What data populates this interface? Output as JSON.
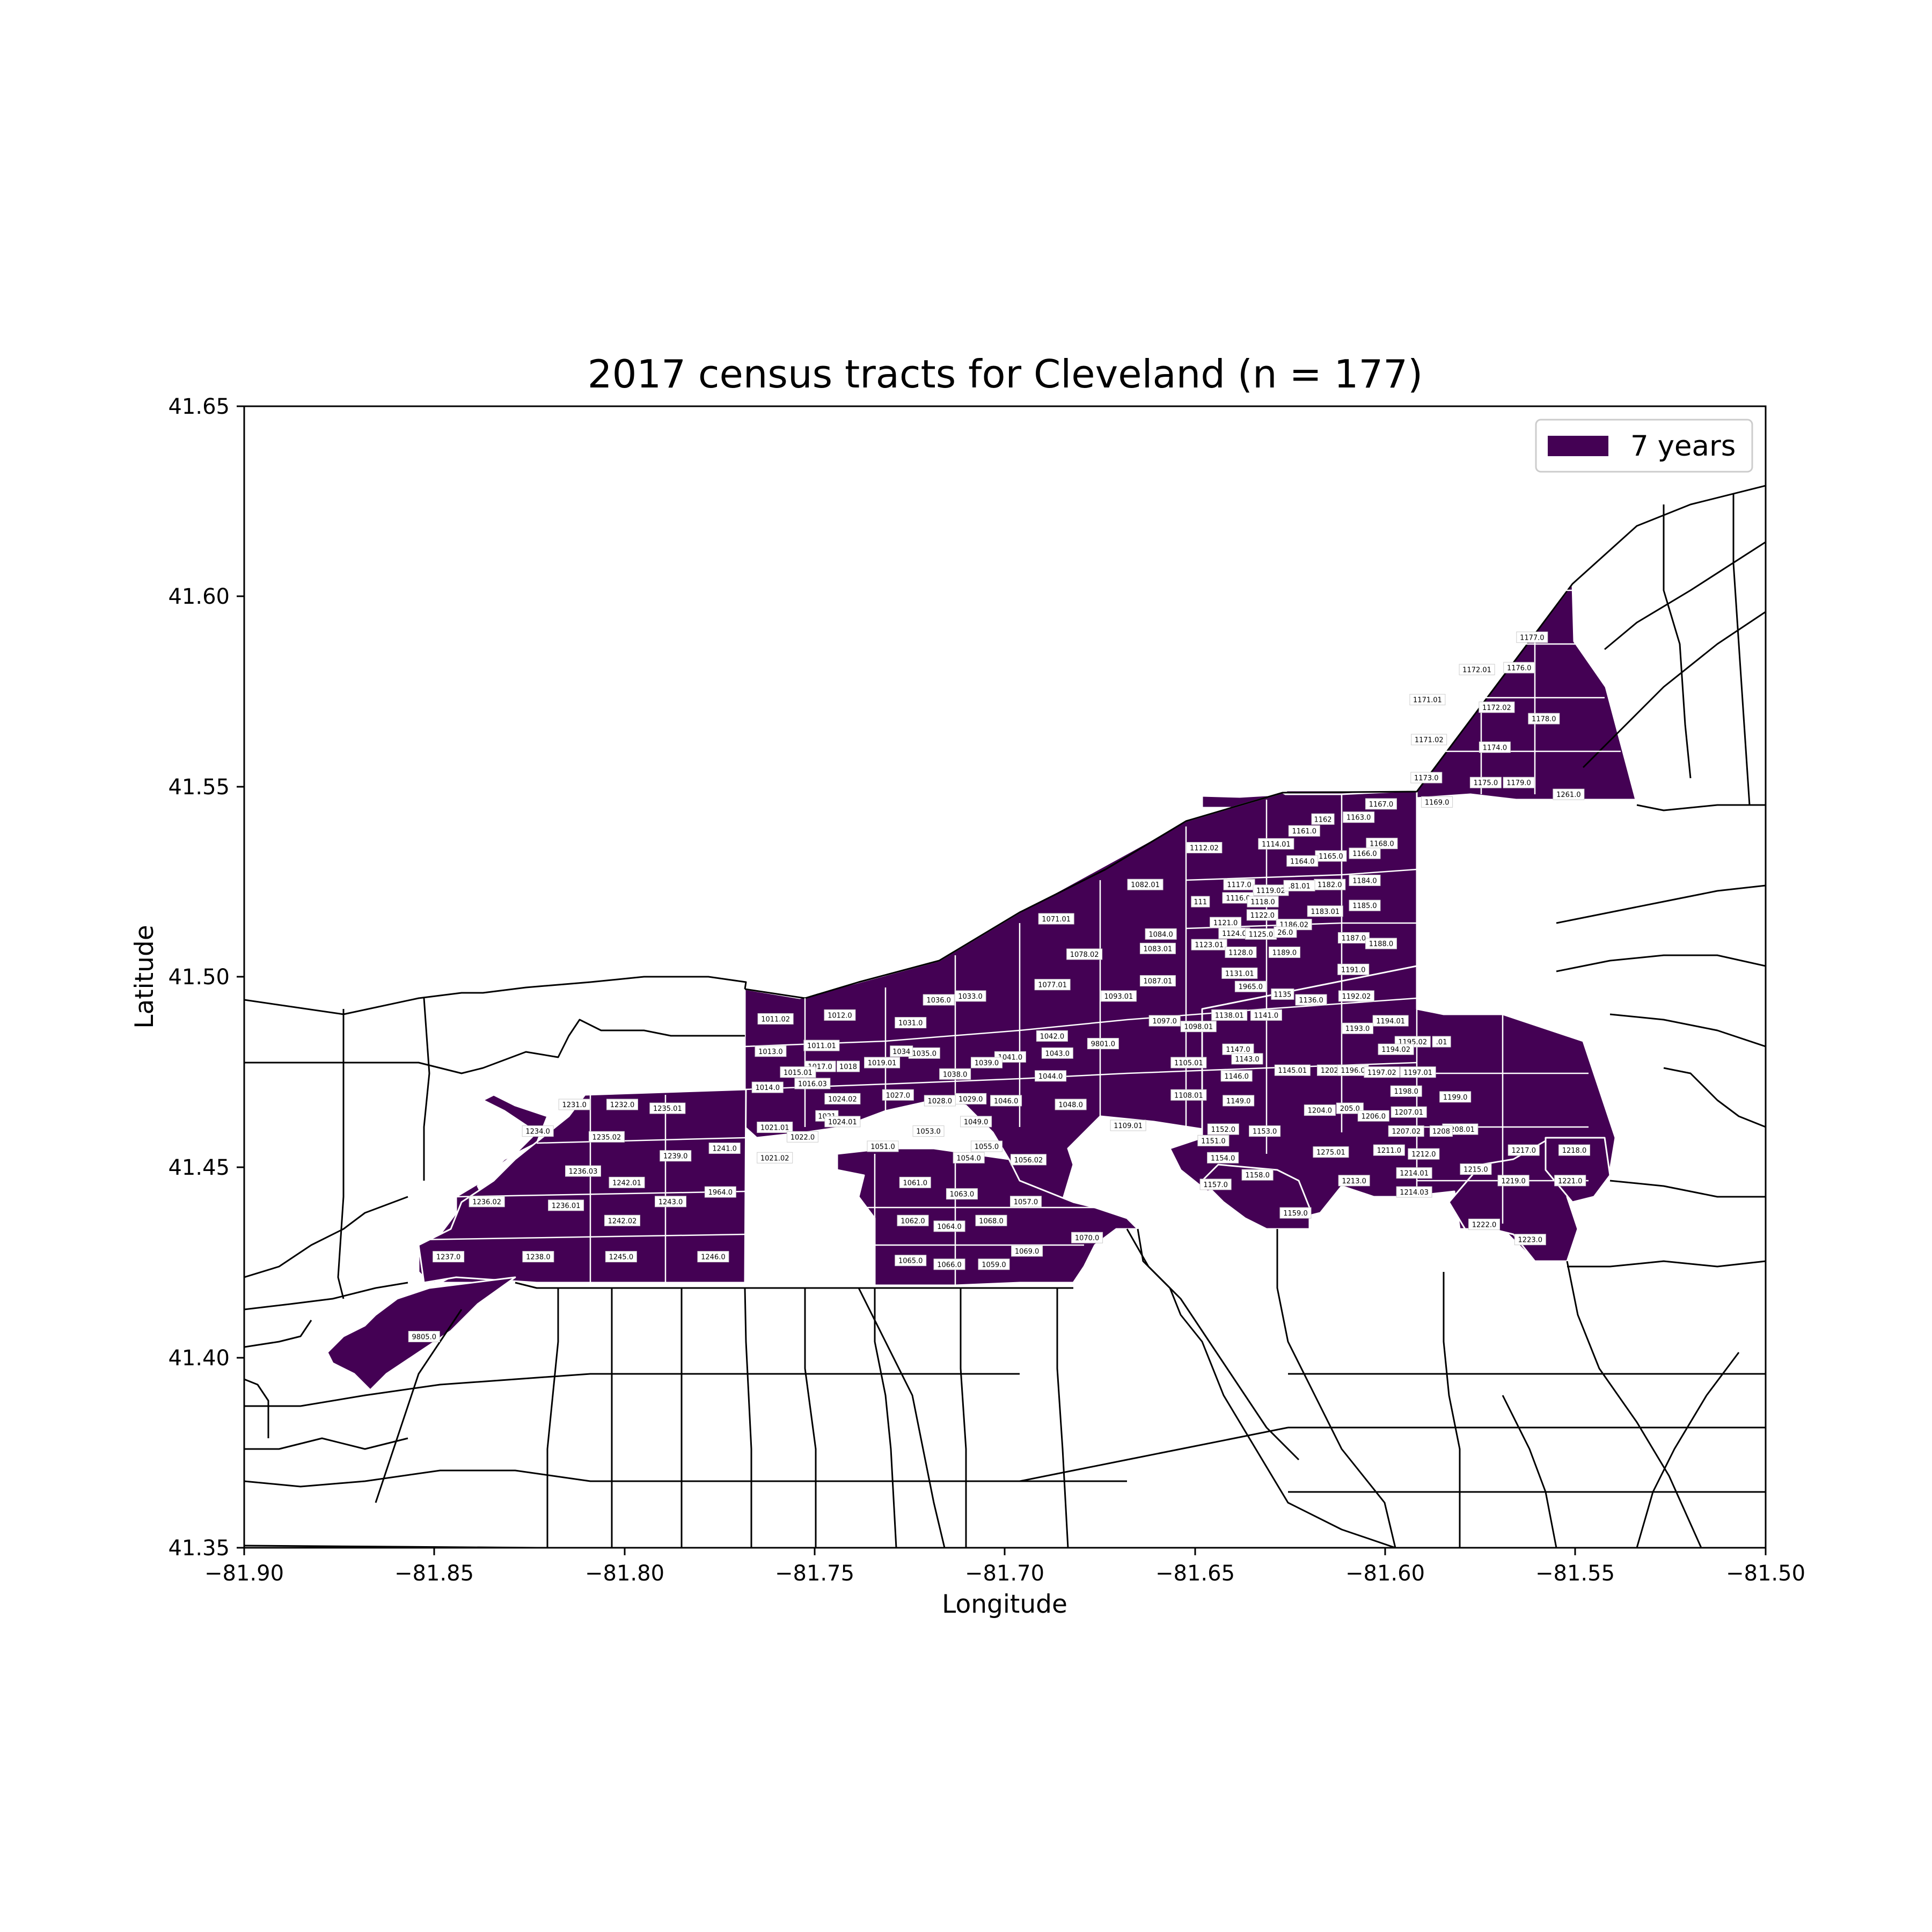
{
  "chart_data": {
    "type": "map",
    "title": "2017 census tracts for Cleveland (n = 177)",
    "xlabel": "Longitude",
    "ylabel": "Latitude",
    "xlim": [
      -81.9,
      -81.5
    ],
    "ylim": [
      41.35,
      41.65
    ],
    "xticks": [
      "−81.90",
      "−81.85",
      "−81.80",
      "−81.75",
      "−81.70",
      "−81.65",
      "−81.60",
      "−81.55",
      "−81.50"
    ],
    "yticks": [
      "41.35",
      "41.40",
      "41.45",
      "41.50",
      "41.55",
      "41.60",
      "41.65"
    ],
    "legend": {
      "placement": "top-right",
      "entries": [
        {
          "label": "7 years",
          "color": "#440154"
        }
      ]
    },
    "colors": {
      "highlight_fill": "#440154",
      "highlight_edge": "#ffffff",
      "boundary": "#000000"
    },
    "tract_labels": [
      {
        "t": "1177.0",
        "lon": -81.5614,
        "lat": 41.5893
      },
      {
        "t": "1172.01",
        "lon": -81.5759,
        "lat": 41.5808
      },
      {
        "t": "1176.0",
        "lon": -81.5648,
        "lat": 41.5813
      },
      {
        "t": "1171.01",
        "lon": -81.5889,
        "lat": 41.5729
      },
      {
        "t": "1172.02",
        "lon": -81.5707,
        "lat": 41.5709
      },
      {
        "t": "1178.0",
        "lon": -81.5583,
        "lat": 41.5679
      },
      {
        "t": "1171.02",
        "lon": -81.5885,
        "lat": 41.5624
      },
      {
        "t": "1174.0",
        "lon": -81.5712,
        "lat": 41.5604
      },
      {
        "t": "1173.0",
        "lon": -81.5892,
        "lat": 41.5524
      },
      {
        "t": "1175.0",
        "lon": -81.5736,
        "lat": 41.5511
      },
      {
        "t": "1179.0",
        "lon": -81.5649,
        "lat": 41.5511
      },
      {
        "t": "1261.0",
        "lon": -81.5518,
        "lat": 41.548
      },
      {
        "t": "1169.0",
        "lon": -81.5864,
        "lat": 41.546
      },
      {
        "t": "1167.0",
        "lon": -81.6011,
        "lat": 41.5455
      },
      {
        "t": "1163.0",
        "lon": -81.607,
        "lat": 41.542
      },
      {
        "t": "1162",
        "lon": -81.6164,
        "lat": 41.5415
      },
      {
        "t": "1161.0",
        "lon": -81.6213,
        "lat": 41.5384
      },
      {
        "t": "1168.0",
        "lon": -81.6009,
        "lat": 41.5351
      },
      {
        "t": "1114.01",
        "lon": -81.6287,
        "lat": 41.535
      },
      {
        "t": "1112.02",
        "lon": -81.6476,
        "lat": 41.534
      },
      {
        "t": "1166.0",
        "lon": -81.6054,
        "lat": 41.5325
      },
      {
        "t": "1165.0",
        "lon": -81.6143,
        "lat": 41.5318
      },
      {
        "t": "1164.0",
        "lon": -81.6218,
        "lat": 41.5305
      },
      {
        "t": "1184.0",
        "lon": -81.6054,
        "lat": 41.5254
      },
      {
        "t": "1117.0",
        "lon": -81.6384,
        "lat": 41.5243
      },
      {
        "t": "1182.0",
        "lon": -81.6146,
        "lat": 41.5243
      },
      {
        "t": "1082.01",
        "lon": -81.6631,
        "lat": 41.5243
      },
      {
        "t": "1119.02",
        "lon": -81.6301,
        "lat": 41.5228
      },
      {
        "t": ".81.01",
        "lon": -81.6226,
        "lat": 41.524
      },
      {
        "t": "1116.0",
        "lon": -81.6387,
        "lat": 41.5208
      },
      {
        "t": "1118.0",
        "lon": -81.6322,
        "lat": 41.5198
      },
      {
        "t": "111",
        "lon": -81.6486,
        "lat": 41.5198
      },
      {
        "t": "1185.0",
        "lon": -81.6054,
        "lat": 41.5188
      },
      {
        "t": "1183.01",
        "lon": -81.6158,
        "lat": 41.5173
      },
      {
        "t": "1122.0",
        "lon": -81.6323,
        "lat": 41.5163
      },
      {
        "t": "1121.0",
        "lon": -81.642,
        "lat": 41.5143
      },
      {
        "t": "1071.01",
        "lon": -81.6865,
        "lat": 41.5153
      },
      {
        "t": "1186.02",
        "lon": -81.624,
        "lat": 41.5138
      },
      {
        "t": "1124.0",
        "lon": -81.6397,
        "lat": 41.5115
      },
      {
        "t": "1125.0",
        "lon": -81.6327,
        "lat": 41.5113
      },
      {
        "t": "26.0",
        "lon": -81.6263,
        "lat": 41.5118
      },
      {
        "t": "1084.0",
        "lon": -81.659,
        "lat": 41.5113
      },
      {
        "t": "1187.0",
        "lon": -81.6083,
        "lat": 41.5103
      },
      {
        "t": "1123.01",
        "lon": -81.6463,
        "lat": 41.5085
      },
      {
        "t": "1083.01",
        "lon": -81.6598,
        "lat": 41.5075
      },
      {
        "t": "1188.0",
        "lon": -81.6011,
        "lat": 41.5088
      },
      {
        "t": "1128.0",
        "lon": -81.638,
        "lat": 41.5065
      },
      {
        "t": "1189.0",
        "lon": -81.6265,
        "lat": 41.5065
      },
      {
        "t": "1078.02",
        "lon": -81.6791,
        "lat": 41.506
      },
      {
        "t": "1191.0",
        "lon": -81.6084,
        "lat": 41.502
      },
      {
        "t": "1131.01",
        "lon": -81.6383,
        "lat": 41.501
      },
      {
        "t": "1087.01",
        "lon": -81.6598,
        "lat": 41.499
      },
      {
        "t": "1077.01",
        "lon": -81.6875,
        "lat": 41.498
      },
      {
        "t": "1965.0",
        "lon": -81.6354,
        "lat": 41.4975
      },
      {
        "t": "1135",
        "lon": -81.627,
        "lat": 41.4955
      },
      {
        "t": "1192.02",
        "lon": -81.6076,
        "lat": 41.495
      },
      {
        "t": "1136.0",
        "lon": -81.6195,
        "lat": 41.494
      },
      {
        "t": "1093.01",
        "lon": -81.6701,
        "lat": 41.495
      },
      {
        "t": "1036.0",
        "lon": -81.7174,
        "lat": 41.494
      },
      {
        "t": "1033.0",
        "lon": -81.7091,
        "lat": 41.495
      },
      {
        "t": "1011.02",
        "lon": -81.7603,
        "lat": 41.489
      },
      {
        "t": "1012.0",
        "lon": -81.7434,
        "lat": 41.49
      },
      {
        "t": "1138.01",
        "lon": -81.641,
        "lat": 41.49
      },
      {
        "t": "1141.0",
        "lon": -81.6313,
        "lat": 41.49
      },
      {
        "t": "1097.0",
        "lon": -81.658,
        "lat": 41.4885
      },
      {
        "t": "1098.01",
        "lon": -81.6491,
        "lat": 41.487
      },
      {
        "t": "1031.0",
        "lon": -81.7248,
        "lat": 41.488
      },
      {
        "t": "1194.01",
        "lon": -81.5986,
        "lat": 41.4885
      },
      {
        "t": "1193.0",
        "lon": -81.6073,
        "lat": 41.4865
      },
      {
        "t": "1042.0",
        "lon": -81.6876,
        "lat": 41.4845
      },
      {
        "t": "1195.02",
        "lon": -81.5928,
        "lat": 41.483
      },
      {
        "t": ".01",
        "lon": -81.5852,
        "lat": 41.483
      },
      {
        "t": "9801.0",
        "lon": -81.6742,
        "lat": 41.4825
      },
      {
        "t": "1194.02",
        "lon": -81.5972,
        "lat": 41.481
      },
      {
        "t": "1011.01",
        "lon": -81.7482,
        "lat": 41.482
      },
      {
        "t": "1013.0",
        "lon": -81.7616,
        "lat": 41.4805
      },
      {
        "t": "1147.0",
        "lon": -81.6387,
        "lat": 41.481
      },
      {
        "t": "1043.0",
        "lon": -81.6862,
        "lat": 41.48
      },
      {
        "t": "1035.0",
        "lon": -81.7212,
        "lat": 41.48
      },
      {
        "t": "1034",
        "lon": -81.7272,
        "lat": 41.4805
      },
      {
        "t": "1041.0",
        "lon": -81.6986,
        "lat": 41.479
      },
      {
        "t": "1143.0",
        "lon": -81.6363,
        "lat": 41.4785
      },
      {
        "t": "1105.01",
        "lon": -81.6517,
        "lat": 41.4775
      },
      {
        "t": "1039.0",
        "lon": -81.7048,
        "lat": 41.4775
      },
      {
        "t": "1019.01",
        "lon": -81.7323,
        "lat": 41.4775
      },
      {
        "t": "1017.0",
        "lon": -81.7486,
        "lat": 41.4765
      },
      {
        "t": "1018",
        "lon": -81.7412,
        "lat": 41.4765
      },
      {
        "t": "1145.01",
        "lon": -81.6244,
        "lat": 41.4755
      },
      {
        "t": "1202.0",
        "lon": -81.6138,
        "lat": 41.4755
      },
      {
        "t": "1196.0",
        "lon": -81.6085,
        "lat": 41.4755
      },
      {
        "t": "1197.02",
        "lon": -81.6009,
        "lat": 41.475
      },
      {
        "t": "1197.01",
        "lon": -81.5914,
        "lat": 41.475
      },
      {
        "t": "1015.01",
        "lon": -81.7544,
        "lat": 41.475
      },
      {
        "t": "1038.0",
        "lon": -81.7131,
        "lat": 41.4745
      },
      {
        "t": "1044.0",
        "lon": -81.688,
        "lat": 41.474
      },
      {
        "t": "1146.0",
        "lon": -81.6391,
        "lat": 41.474
      },
      {
        "t": "1016.03",
        "lon": -81.7506,
        "lat": 41.472
      },
      {
        "t": "1014.0",
        "lon": -81.7624,
        "lat": 41.471
      },
      {
        "t": "1198.0",
        "lon": -81.5945,
        "lat": 41.47
      },
      {
        "t": "1108.01",
        "lon": -81.6517,
        "lat": 41.469
      },
      {
        "t": "1199.0",
        "lon": -81.5816,
        "lat": 41.4685
      },
      {
        "t": "1027.0",
        "lon": -81.7281,
        "lat": 41.469
      },
      {
        "t": "1024.02",
        "lon": -81.7427,
        "lat": 41.468
      },
      {
        "t": "1029.0",
        "lon": -81.709,
        "lat": 41.468
      },
      {
        "t": "1046.0",
        "lon": -81.6997,
        "lat": 41.4675
      },
      {
        "t": "1028.0",
        "lon": -81.7171,
        "lat": 41.4675
      },
      {
        "t": "1149.0",
        "lon": -81.6386,
        "lat": 41.4675
      },
      {
        "t": "1048.0",
        "lon": -81.6827,
        "lat": 41.4665
      },
      {
        "t": "1231.0",
        "lon": -81.8132,
        "lat": 41.4665
      },
      {
        "t": "1232.0",
        "lon": -81.8006,
        "lat": 41.4665
      },
      {
        "t": "1235.01",
        "lon": -81.7887,
        "lat": 41.4655
      },
      {
        "t": "1204.0",
        "lon": -81.6172,
        "lat": 41.465
      },
      {
        "t": "205.0",
        "lon": -81.6093,
        "lat": 41.4655
      },
      {
        "t": "1207.01",
        "lon": -81.5938,
        "lat": 41.4645
      },
      {
        "t": "1206.0",
        "lon": -81.6031,
        "lat": 41.4635
      },
      {
        "t": "1021",
        "lon": -81.7468,
        "lat": 41.4635
      },
      {
        "t": "1049.0",
        "lon": -81.7076,
        "lat": 41.462
      },
      {
        "t": "1024.01",
        "lon": -81.7427,
        "lat": 41.462
      },
      {
        "t": "1109.01",
        "lon": -81.6676,
        "lat": 41.461
      },
      {
        "t": "1021.01",
        "lon": -81.7605,
        "lat": 41.4605
      },
      {
        "t": "1208.01",
        "lon": -81.5803,
        "lat": 41.46
      },
      {
        "t": "1207.02",
        "lon": -81.5945,
        "lat": 41.4595
      },
      {
        "t": "1208",
        "lon": -81.5853,
        "lat": 41.4595
      },
      {
        "t": "1152.0",
        "lon": -81.6426,
        "lat": 41.46
      },
      {
        "t": "1153.0",
        "lon": -81.6317,
        "lat": 41.4595
      },
      {
        "t": "1234.0",
        "lon": -81.8228,
        "lat": 41.4595
      },
      {
        "t": "1053.0",
        "lon": -81.7201,
        "lat": 41.4595
      },
      {
        "t": "1022.0",
        "lon": -81.7532,
        "lat": 41.458
      },
      {
        "t": "1235.02",
        "lon": -81.8047,
        "lat": 41.458
      },
      {
        "t": "1151.0",
        "lon": -81.6452,
        "lat": 41.457
      },
      {
        "t": "1055.0",
        "lon": -81.7048,
        "lat": 41.4555
      },
      {
        "t": "1051.0",
        "lon": -81.7321,
        "lat": 41.4555
      },
      {
        "t": "1241.0",
        "lon": -81.7737,
        "lat": 41.455
      },
      {
        "t": "1211.0",
        "lon": -81.599,
        "lat": 41.4545
      },
      {
        "t": "1217.0",
        "lon": -81.5636,
        "lat": 41.4545
      },
      {
        "t": "1218.0",
        "lon": -81.5503,
        "lat": 41.4545
      },
      {
        "t": "1275.01",
        "lon": -81.6143,
        "lat": 41.454
      },
      {
        "t": "1212.0",
        "lon": -81.5899,
        "lat": 41.4535
      },
      {
        "t": "1239.0",
        "lon": -81.7866,
        "lat": 41.453
      },
      {
        "t": "1154.0",
        "lon": -81.6427,
        "lat": 41.4525
      },
      {
        "t": "1021.02",
        "lon": -81.7605,
        "lat": 41.4525
      },
      {
        "t": "1054.0",
        "lon": -81.7095,
        "lat": 41.4525
      },
      {
        "t": "1056.02",
        "lon": -81.6938,
        "lat": 41.452
      },
      {
        "t": "1215.0",
        "lon": -81.5762,
        "lat": 41.4495
      },
      {
        "t": "1236.03",
        "lon": -81.8109,
        "lat": 41.449
      },
      {
        "t": "1214.01",
        "lon": -81.5924,
        "lat": 41.4485
      },
      {
        "t": "1158.0",
        "lon": -81.6336,
        "lat": 41.448
      },
      {
        "t": "1213.0",
        "lon": -81.6082,
        "lat": 41.4465
      },
      {
        "t": "1219.0",
        "lon": -81.5663,
        "lat": 41.4465
      },
      {
        "t": "1221.0",
        "lon": -81.5514,
        "lat": 41.4465
      },
      {
        "t": "1242.01",
        "lon": -81.7994,
        "lat": 41.446
      },
      {
        "t": "1061.0",
        "lon": -81.7236,
        "lat": 41.446
      },
      {
        "t": "1157.0",
        "lon": -81.6446,
        "lat": 41.4455
      },
      {
        "t": "1964.0",
        "lon": -81.7748,
        "lat": 41.4435
      },
      {
        "t": "1214.03",
        "lon": -81.5924,
        "lat": 41.4435
      },
      {
        "t": "1063.0",
        "lon": -81.7113,
        "lat": 41.443
      },
      {
        "t": "1236.02",
        "lon": -81.8362,
        "lat": 41.441
      },
      {
        "t": "1236.01",
        "lon": -81.8154,
        "lat": 41.44
      },
      {
        "t": "1243.0",
        "lon": -81.7879,
        "lat": 41.441
      },
      {
        "t": "1057.0",
        "lon": -81.6945,
        "lat": 41.441
      },
      {
        "t": "1159.0",
        "lon": -81.6236,
        "lat": 41.438
      },
      {
        "t": "1062.0",
        "lon": -81.7242,
        "lat": 41.436
      },
      {
        "t": "1242.02",
        "lon": -81.8006,
        "lat": 41.436
      },
      {
        "t": "1068.0",
        "lon": -81.7036,
        "lat": 41.436
      },
      {
        "t": "1222.0",
        "lon": -81.574,
        "lat": 41.435
      },
      {
        "t": "1064.0",
        "lon": -81.7146,
        "lat": 41.4345
      },
      {
        "t": "1070.0",
        "lon": -81.6784,
        "lat": 41.4315
      },
      {
        "t": "1223.0",
        "lon": -81.5619,
        "lat": 41.431
      },
      {
        "t": "1069.0",
        "lon": -81.6942,
        "lat": 41.428
      },
      {
        "t": "1237.0",
        "lon": -81.8463,
        "lat": 41.4265
      },
      {
        "t": "1238.0",
        "lon": -81.8227,
        "lat": 41.4265
      },
      {
        "t": "1245.0",
        "lon": -81.8009,
        "lat": 41.4265
      },
      {
        "t": "1246.0",
        "lon": -81.7767,
        "lat": 41.4265
      },
      {
        "t": "1065.0",
        "lon": -81.7248,
        "lat": 41.4255
      },
      {
        "t": "1066.0",
        "lon": -81.7146,
        "lat": 41.4245
      },
      {
        "t": "1059.0",
        "lon": -81.7029,
        "lat": 41.4245
      },
      {
        "t": "9805.0",
        "lon": -81.8527,
        "lat": 41.4055
      }
    ]
  }
}
